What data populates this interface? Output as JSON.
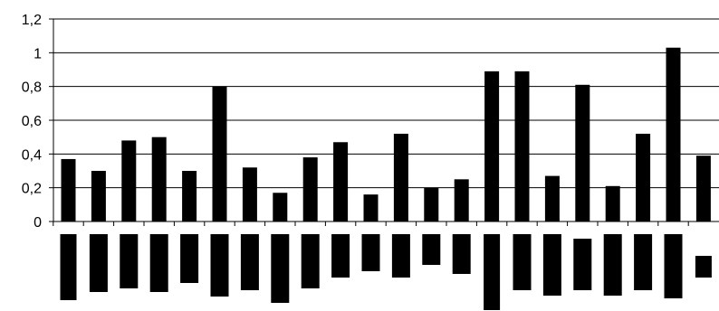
{
  "chart_data": {
    "type": "bar",
    "title": "",
    "xlabel": "",
    "ylabel": "",
    "ylim": [
      0,
      1.2
    ],
    "y_ticks": [
      "0",
      "0,2",
      "0,4",
      "0,6",
      "0,8",
      "1",
      "1,2"
    ],
    "grid": true,
    "legend": "none",
    "categories_readable": false,
    "values": [
      0.37,
      0.3,
      0.48,
      0.5,
      0.3,
      0.8,
      0.32,
      0.17,
      0.38,
      0.47,
      0.16,
      0.52,
      0.2,
      0.25,
      0.89,
      0.89,
      0.27,
      0.81,
      0.21,
      0.52,
      1.03,
      0.39
    ],
    "bar_color": "#000000"
  }
}
